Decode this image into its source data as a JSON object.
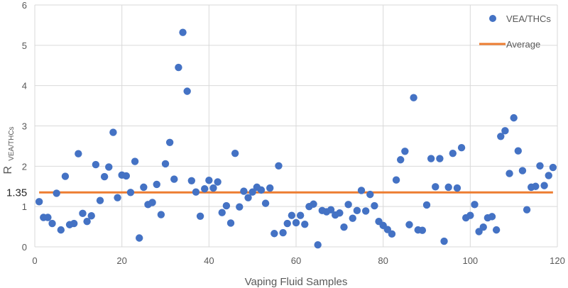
{
  "chart_data": {
    "type": "scatter",
    "xlabel": "Vaping Fluid Samples",
    "ylabel_main": "R",
    "ylabel_sub": "VEA/THCs",
    "xlim": [
      0,
      120
    ],
    "ylim": [
      0,
      6
    ],
    "xticks": [
      0,
      20,
      40,
      60,
      80,
      100,
      120
    ],
    "yticks": [
      0,
      1,
      2,
      3,
      4,
      5,
      6
    ],
    "grid": true,
    "legend_position": "top-right",
    "average": {
      "name": "Average",
      "value": 1.35,
      "label": "1.35",
      "color": "#ED7D31"
    },
    "series": [
      {
        "name": "VEA/THCs",
        "color": "#4472C4",
        "points": [
          [
            1,
            1.12
          ],
          [
            2,
            0.73
          ],
          [
            3,
            0.73
          ],
          [
            4,
            0.58
          ],
          [
            5,
            1.33
          ],
          [
            6,
            0.42
          ],
          [
            7,
            1.75
          ],
          [
            8,
            0.55
          ],
          [
            9,
            0.58
          ],
          [
            10,
            2.31
          ],
          [
            11,
            0.83
          ],
          [
            12,
            0.63
          ],
          [
            13,
            0.77
          ],
          [
            14,
            2.04
          ],
          [
            15,
            1.15
          ],
          [
            16,
            1.74
          ],
          [
            17,
            1.98
          ],
          [
            18,
            2.84
          ],
          [
            19,
            1.22
          ],
          [
            20,
            1.78
          ],
          [
            21,
            1.76
          ],
          [
            22,
            1.35
          ],
          [
            23,
            2.12
          ],
          [
            24,
            0.22
          ],
          [
            25,
            1.48
          ],
          [
            26,
            1.05
          ],
          [
            27,
            1.1
          ],
          [
            28,
            1.55
          ],
          [
            29,
            0.8
          ],
          [
            30,
            2.06
          ],
          [
            31,
            2.59
          ],
          [
            32,
            1.68
          ],
          [
            33,
            4.45
          ],
          [
            34,
            5.32
          ],
          [
            35,
            3.86
          ],
          [
            36,
            1.64
          ],
          [
            37,
            1.36
          ],
          [
            38,
            0.76
          ],
          [
            39,
            1.44
          ],
          [
            40,
            1.65
          ],
          [
            41,
            1.46
          ],
          [
            42,
            1.61
          ],
          [
            43,
            0.85
          ],
          [
            44,
            1.02
          ],
          [
            45,
            0.59
          ],
          [
            46,
            2.32
          ],
          [
            47,
            0.99
          ],
          [
            48,
            1.38
          ],
          [
            49,
            1.22
          ],
          [
            50,
            1.36
          ],
          [
            51,
            1.48
          ],
          [
            52,
            1.41
          ],
          [
            53,
            1.08
          ],
          [
            54,
            1.46
          ],
          [
            55,
            0.33
          ],
          [
            56,
            2.01
          ],
          [
            57,
            0.35
          ],
          [
            58,
            0.58
          ],
          [
            59,
            0.78
          ],
          [
            60,
            0.6
          ],
          [
            61,
            0.78
          ],
          [
            62,
            0.56
          ],
          [
            63,
            1.0
          ],
          [
            64,
            1.06
          ],
          [
            65,
            0.05
          ],
          [
            66,
            0.9
          ],
          [
            67,
            0.87
          ],
          [
            68,
            0.92
          ],
          [
            69,
            0.79
          ],
          [
            70,
            0.84
          ],
          [
            71,
            0.49
          ],
          [
            72,
            1.05
          ],
          [
            73,
            0.71
          ],
          [
            74,
            0.9
          ],
          [
            75,
            1.4
          ],
          [
            76,
            0.89
          ],
          [
            77,
            1.3
          ],
          [
            78,
            1.02
          ],
          [
            79,
            0.63
          ],
          [
            80,
            0.53
          ],
          [
            81,
            0.43
          ],
          [
            82,
            0.32
          ],
          [
            83,
            1.66
          ],
          [
            84,
            2.16
          ],
          [
            85,
            2.37
          ],
          [
            86,
            0.55
          ],
          [
            87,
            3.7
          ],
          [
            88,
            0.42
          ],
          [
            89,
            0.41
          ],
          [
            90,
            1.04
          ],
          [
            91,
            2.19
          ],
          [
            92,
            1.49
          ],
          [
            93,
            2.19
          ],
          [
            94,
            0.14
          ],
          [
            95,
            1.48
          ],
          [
            96,
            2.32
          ],
          [
            97,
            1.46
          ],
          [
            98,
            2.46
          ],
          [
            99,
            0.72
          ],
          [
            100,
            0.78
          ],
          [
            101,
            1.05
          ],
          [
            102,
            0.38
          ],
          [
            103,
            0.49
          ],
          [
            104,
            0.72
          ],
          [
            105,
            0.75
          ],
          [
            106,
            0.42
          ],
          [
            107,
            2.74
          ],
          [
            108,
            2.88
          ],
          [
            109,
            1.82
          ],
          [
            110,
            3.2
          ],
          [
            111,
            2.38
          ],
          [
            112,
            1.89
          ],
          [
            113,
            0.92
          ],
          [
            114,
            1.48
          ],
          [
            115,
            1.5
          ],
          [
            116,
            2.01
          ],
          [
            117,
            1.52
          ],
          [
            118,
            1.77
          ],
          [
            119,
            1.97
          ]
        ]
      }
    ]
  }
}
